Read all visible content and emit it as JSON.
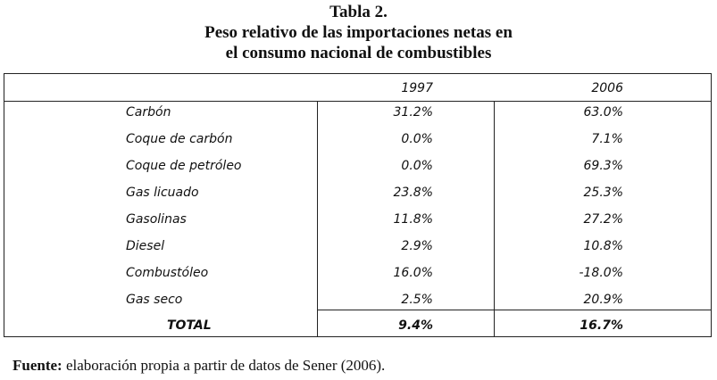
{
  "title": {
    "line1": "Tabla 2.",
    "line2": "Peso relativo de las importaciones netas en",
    "line3": "el consumo nacional de combustibles"
  },
  "table": {
    "columns": [
      "",
      "1997",
      "2006"
    ],
    "rows": [
      {
        "label": "Carbón",
        "v1997": "31.2%",
        "v2006": "63.0%"
      },
      {
        "label": "Coque de carbón",
        "v1997": "0.0%",
        "v2006": "7.1%"
      },
      {
        "label": "Coque de petróleo",
        "v1997": "0.0%",
        "v2006": "69.3%"
      },
      {
        "label": "Gas licuado",
        "v1997": "23.8%",
        "v2006": "25.3%"
      },
      {
        "label": "Gasolinas",
        "v1997": "11.8%",
        "v2006": "27.2%"
      },
      {
        "label": "Diesel",
        "v1997": "2.9%",
        "v2006": "10.8%"
      },
      {
        "label": "Combustóleo",
        "v1997": "16.0%",
        "v2006": "-18.0%"
      },
      {
        "label": "Gas seco",
        "v1997": "2.5%",
        "v2006": "20.9%"
      }
    ],
    "total": {
      "label": "TOTAL",
      "v1997": "9.4%",
      "v2006": "16.7%"
    }
  },
  "source": {
    "label": "Fuente:",
    "text": " elaboración propia a partir de datos de Sener (2006)."
  }
}
